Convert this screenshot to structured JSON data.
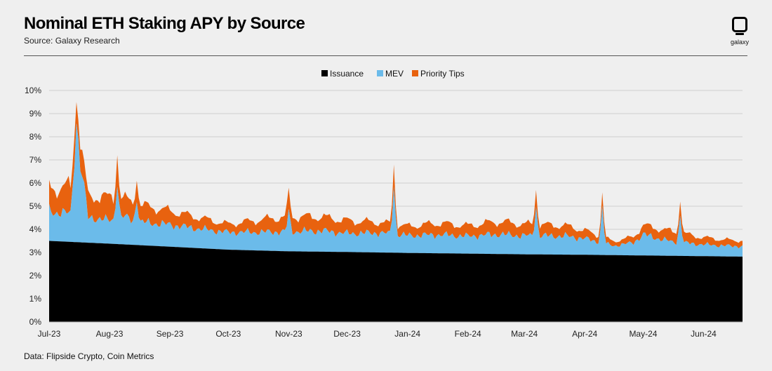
{
  "header": {
    "title": "Nominal ETH Staking APY by Source",
    "subtitle": "Source: Galaxy Research",
    "logo_text": "galaxy"
  },
  "footer": {
    "data_source": "Data: Flipside Crypto, Coin Metrics"
  },
  "colors": {
    "issuance": "#000000",
    "mev": "#6bbbea",
    "priority_tips": "#e8620f",
    "grid": "#cfcfcf",
    "background": "#efefef"
  },
  "chart_data": {
    "type": "area",
    "stacked": true,
    "title": "Nominal ETH Staking APY by Source",
    "xlabel": "",
    "ylabel": "",
    "ylim": [
      0,
      10
    ],
    "y_unit": "%",
    "yticks": [
      0,
      1,
      2,
      3,
      4,
      5,
      6,
      7,
      8,
      9,
      10
    ],
    "ytick_labels": [
      "0%",
      "1%",
      "2%",
      "3%",
      "4%",
      "5%",
      "6%",
      "7%",
      "8%",
      "9%",
      "10%"
    ],
    "x_range_days": [
      0,
      356
    ],
    "xticks": [
      {
        "day": 0,
        "label": "Jul-23"
      },
      {
        "day": 31,
        "label": "Aug-23"
      },
      {
        "day": 62,
        "label": "Sep-23"
      },
      {
        "day": 92,
        "label": "Oct-23"
      },
      {
        "day": 123,
        "label": "Nov-23"
      },
      {
        "day": 153,
        "label": "Dec-23"
      },
      {
        "day": 184,
        "label": "Jan-24"
      },
      {
        "day": 215,
        "label": "Feb-24"
      },
      {
        "day": 244,
        "label": "Mar-24"
      },
      {
        "day": 275,
        "label": "Apr-24"
      },
      {
        "day": 305,
        "label": "May-24"
      },
      {
        "day": 336,
        "label": "Jun-24"
      }
    ],
    "legend": {
      "position": "top-center",
      "entries": [
        "Issuance",
        "MEV",
        "Priority Tips"
      ]
    },
    "series": [
      {
        "name": "Issuance",
        "x_days": [
          0,
          31,
          62,
          92,
          123,
          153,
          184,
          215,
          244,
          275,
          305,
          336,
          356
        ],
        "values": [
          3.5,
          3.38,
          3.25,
          3.12,
          3.05,
          3.02,
          2.98,
          2.95,
          2.92,
          2.9,
          2.87,
          2.84,
          2.82
        ]
      },
      {
        "name": "MEV",
        "x_days": [
          0,
          5,
          11,
          14,
          20,
          31,
          38,
          45,
          62,
          75,
          92,
          110,
          123,
          140,
          153,
          170,
          184,
          200,
          215,
          230,
          244,
          265,
          275,
          290,
          300,
          305,
          320,
          336,
          350,
          356
        ],
        "values": [
          1.35,
          1.2,
          1.25,
          4.6,
          1.1,
          1.0,
          1.2,
          1.0,
          0.95,
          0.85,
          0.75,
          0.8,
          0.85,
          0.9,
          0.8,
          0.85,
          0.75,
          0.8,
          0.75,
          0.85,
          0.8,
          0.8,
          0.7,
          0.4,
          0.55,
          0.9,
          0.6,
          0.5,
          0.45,
          0.45
        ]
      },
      {
        "name": "Priority Tips",
        "x_days": [
          0,
          5,
          10,
          14,
          20,
          31,
          38,
          45,
          62,
          75,
          92,
          110,
          123,
          140,
          153,
          170,
          184,
          200,
          215,
          230,
          244,
          265,
          275,
          290,
          300,
          305,
          320,
          336,
          350,
          356
        ],
        "values": [
          1.1,
          1.0,
          1.2,
          1.0,
          0.9,
          1.0,
          0.8,
          0.75,
          0.6,
          0.5,
          0.35,
          0.55,
          0.65,
          0.6,
          0.55,
          0.45,
          0.4,
          0.5,
          0.45,
          0.55,
          0.5,
          0.45,
          0.35,
          0.2,
          0.25,
          0.4,
          0.45,
          0.3,
          0.25,
          0.25
        ]
      }
    ],
    "spikes": [
      {
        "day": 14,
        "total": 9.5
      },
      {
        "day": 35,
        "total": 7.2
      },
      {
        "day": 45,
        "total": 6.1
      },
      {
        "day": 123,
        "total": 5.8
      },
      {
        "day": 177,
        "total": 6.8
      },
      {
        "day": 250,
        "total": 5.7
      },
      {
        "day": 284,
        "total": 5.6
      },
      {
        "day": 324,
        "total": 5.2
      }
    ]
  }
}
